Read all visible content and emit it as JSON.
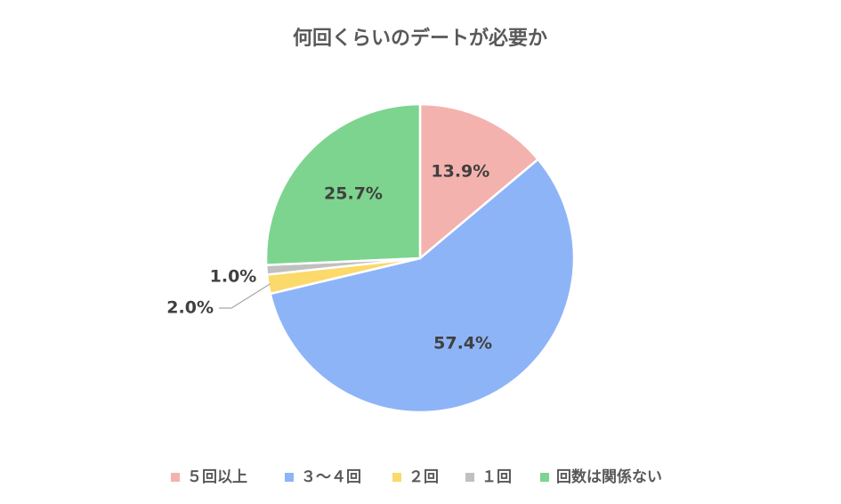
{
  "chart_data": {
    "type": "pie",
    "title": "何回くらいのデートが必要か",
    "categories": [
      "５回以上",
      "３～４回",
      "２回",
      "１回",
      "回数は関係ない"
    ],
    "values": [
      13.9,
      57.4,
      2.0,
      1.0,
      25.7
    ],
    "value_labels": [
      "13.9%",
      "57.4%",
      "2.0%",
      "1.0%",
      "25.7%"
    ],
    "colors": [
      "#F4B2AE",
      "#8EB4F8",
      "#FBD96A",
      "#C0C0C0",
      "#7DD48F"
    ],
    "start_angle": "12 o'clock",
    "direction": "clockwise",
    "legend_position": "bottom"
  }
}
